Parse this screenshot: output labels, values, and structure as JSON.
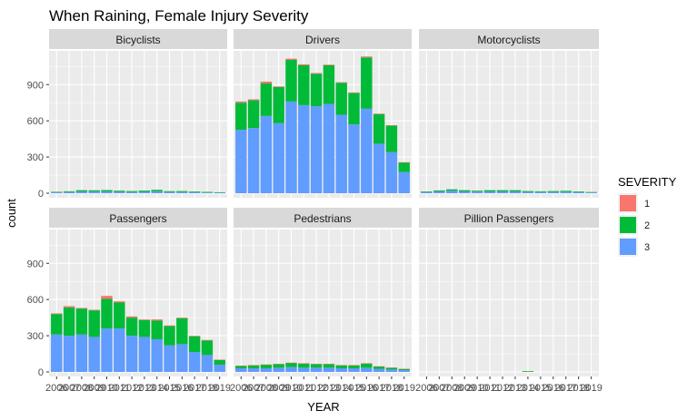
{
  "chart_data": {
    "type": "bar",
    "stacked": true,
    "faceted": true,
    "title": "When Raining, Female Injury Severity",
    "xlabel": "YEAR",
    "ylabel": "count",
    "ylim": [
      0,
      1180
    ],
    "y_ticks": [
      0,
      300,
      600,
      900
    ],
    "x": [
      2006,
      2007,
      2008,
      2009,
      2010,
      2011,
      2012,
      2013,
      2014,
      2015,
      2016,
      2017,
      2018,
      2019
    ],
    "legend": {
      "title": "SEVERITY",
      "position": "right",
      "entries": [
        {
          "label": "1",
          "color": "#F8766D"
        },
        {
          "label": "2",
          "color": "#00BA38"
        },
        {
          "label": "3",
          "color": "#619CFF"
        }
      ]
    },
    "panels": [
      {
        "name": "Bicyclists",
        "series": [
          {
            "severity": "3",
            "values": [
              8,
              10,
              15,
              14,
              15,
              12,
              10,
              12,
              16,
              10,
              10,
              8,
              6,
              5
            ]
          },
          {
            "severity": "2",
            "values": [
              4,
              6,
              10,
              10,
              11,
              9,
              8,
              10,
              12,
              7,
              8,
              6,
              5,
              3
            ]
          },
          {
            "severity": "1",
            "values": [
              0,
              0,
              0,
              0,
              0,
              0,
              0,
              0,
              0,
              0,
              0,
              0,
              0,
              0
            ]
          }
        ]
      },
      {
        "name": "Drivers",
        "series": [
          {
            "severity": "3",
            "values": [
              525,
              540,
              640,
              580,
              760,
              730,
              720,
              740,
              650,
              570,
              700,
              410,
              340,
              175
            ]
          },
          {
            "severity": "2",
            "values": [
              225,
              230,
              270,
              300,
              345,
              330,
              270,
              320,
              265,
              260,
              425,
              245,
              220,
              80
            ]
          },
          {
            "severity": "1",
            "values": [
              10,
              8,
              15,
              5,
              10,
              8,
              6,
              5,
              5,
              5,
              8,
              5,
              3,
              2
            ]
          }
        ]
      },
      {
        "name": "Motorcyclists",
        "series": [
          {
            "severity": "3",
            "values": [
              10,
              15,
              20,
              15,
              13,
              15,
              15,
              15,
              10,
              10,
              10,
              12,
              8,
              6
            ]
          },
          {
            "severity": "2",
            "values": [
              5,
              8,
              12,
              10,
              8,
              10,
              10,
              10,
              8,
              6,
              8,
              8,
              6,
              4
            ]
          },
          {
            "severity": "1",
            "values": [
              0,
              0,
              0,
              0,
              0,
              0,
              0,
              0,
              0,
              0,
              0,
              0,
              0,
              0
            ]
          }
        ]
      },
      {
        "name": "Passengers",
        "series": [
          {
            "severity": "3",
            "values": [
              310,
              300,
              310,
              290,
              360,
              360,
              300,
              290,
              270,
              220,
              230,
              165,
              140,
              60
            ]
          },
          {
            "severity": "2",
            "values": [
              170,
              235,
              215,
              220,
              245,
              215,
              150,
              140,
              155,
              160,
              215,
              130,
              120,
              40
            ]
          },
          {
            "severity": "1",
            "values": [
              5,
              10,
              5,
              5,
              25,
              10,
              10,
              5,
              10,
              5,
              5,
              5,
              5,
              2
            ]
          }
        ]
      },
      {
        "name": "Pedestrians",
        "series": [
          {
            "severity": "3",
            "values": [
              30,
              30,
              30,
              35,
              40,
              35,
              35,
              35,
              30,
              30,
              35,
              25,
              20,
              15
            ]
          },
          {
            "severity": "2",
            "values": [
              20,
              25,
              30,
              30,
              35,
              35,
              30,
              30,
              25,
              25,
              35,
              20,
              15,
              10
            ]
          },
          {
            "severity": "1",
            "values": [
              2,
              2,
              2,
              2,
              2,
              2,
              2,
              2,
              2,
              2,
              2,
              2,
              1,
              1
            ]
          }
        ]
      },
      {
        "name": "Pillion Passengers",
        "series": [
          {
            "severity": "3",
            "values": [
              0,
              0,
              0,
              0,
              0,
              0,
              0,
              0,
              0,
              0,
              0,
              0,
              0,
              0
            ]
          },
          {
            "severity": "2",
            "values": [
              0,
              0,
              0,
              0,
              0,
              0,
              0,
              0,
              6,
              0,
              0,
              0,
              0,
              0
            ]
          },
          {
            "severity": "1",
            "values": [
              0,
              0,
              0,
              0,
              0,
              0,
              0,
              0,
              0,
              0,
              0,
              0,
              0,
              0
            ]
          }
        ]
      }
    ]
  }
}
